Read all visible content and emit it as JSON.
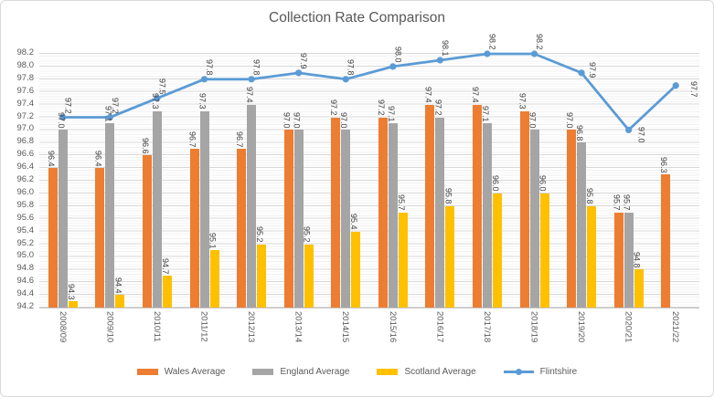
{
  "title": "Collection Rate Comparison",
  "chart_data": {
    "type": "combo-bar-line",
    "title": "Collection Rate Comparison",
    "categories": [
      "2008/09",
      "2009/10",
      "2010/11",
      "2011/12",
      "2012/13",
      "2013/14",
      "2014/15",
      "2015/16",
      "2016/17",
      "2017/18",
      "2018/19",
      "2019/20",
      "2020/21",
      "2021/22"
    ],
    "series": [
      {
        "name": "Wales Average",
        "type": "bar",
        "color": "#ED7D31",
        "values": [
          96.4,
          96.4,
          96.6,
          96.7,
          96.7,
          97.0,
          97.2,
          97.2,
          97.4,
          97.4,
          97.3,
          97.0,
          95.7,
          96.3
        ]
      },
      {
        "name": "England Average",
        "type": "bar",
        "color": "#A5A5A5",
        "values": [
          97.0,
          97.1,
          97.3,
          97.3,
          97.4,
          97.0,
          97.0,
          97.1,
          97.2,
          97.1,
          97.0,
          96.8,
          95.7,
          null
        ]
      },
      {
        "name": "Scotland Average",
        "type": "bar",
        "color": "#FFC000",
        "values": [
          94.3,
          94.4,
          94.7,
          95.1,
          95.2,
          95.2,
          95.4,
          95.7,
          95.8,
          96.0,
          96.0,
          95.8,
          94.8,
          null
        ]
      },
      {
        "name": "Flintshire",
        "type": "line",
        "color": "#5B9BD5",
        "values": [
          97.2,
          97.2,
          97.5,
          97.8,
          97.8,
          97.9,
          97.8,
          98.0,
          98.1,
          98.2,
          98.2,
          97.9,
          97.0,
          97.7
        ]
      }
    ],
    "ylim": [
      94.2,
      98.2
    ],
    "y_major_unit": 0.2,
    "y_minor_unit": 0.04,
    "y_tick_labels": [
      "94.2",
      "94.4",
      "94.6",
      "94.8",
      "95.0",
      "95.2",
      "95.4",
      "95.6",
      "95.8",
      "96.0",
      "96.2",
      "96.4",
      "96.6",
      "96.8",
      "97.0",
      "97.2",
      "97.4",
      "97.6",
      "97.8",
      "98.0",
      "98.2"
    ],
    "grid": {
      "major_horizontal": true,
      "minor_horizontal": true,
      "vertical": false
    },
    "legend_position": "bottom",
    "data_labels": {
      "enabled": true,
      "decimals": 1,
      "rotation": "vertical-read-down"
    },
    "x_tick_rotation": "vertical-read-down"
  },
  "colors": {
    "wales": "#ED7D31",
    "england": "#A5A5A5",
    "scotland": "#FFC000",
    "flintshire": "#5B9BD5",
    "title_text": "#595959",
    "axis_text": "#595959",
    "data_label_text": "#404040",
    "major_grid": "#D7D7D7",
    "minor_grid": "#F1F1F1",
    "chart_border": "#D9D9D9"
  }
}
